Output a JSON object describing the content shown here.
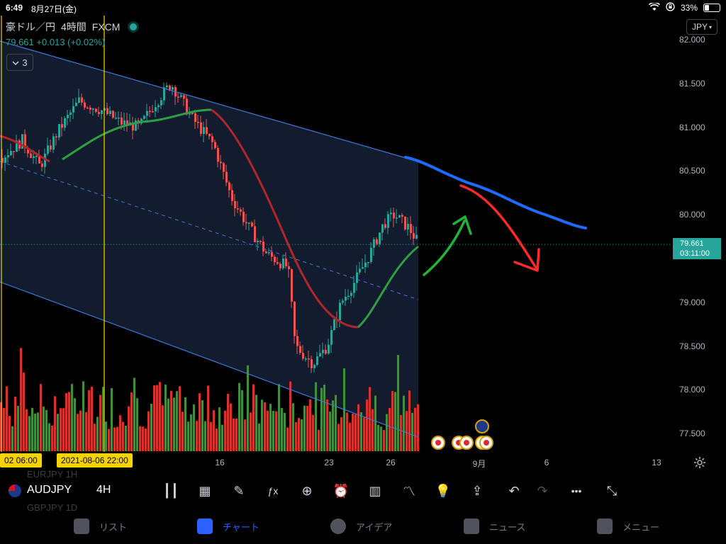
{
  "status": {
    "time": "6:49",
    "date": "8月27日(金)",
    "battery": "33%"
  },
  "legend": {
    "symbol": "豪ドル／円",
    "interval": "4時間",
    "source": "FXCM",
    "price": "79.661",
    "change": "+0.013 (+0.02%)",
    "collapse_count": "3"
  },
  "currency_button": "JPY",
  "y_axis": [
    {
      "v": "82.000",
      "p": 82.0
    },
    {
      "v": "81.500",
      "p": 81.5
    },
    {
      "v": "81.000",
      "p": 81.0
    },
    {
      "v": "80.500",
      "p": 80.5
    },
    {
      "v": "80.000",
      "p": 80.0
    },
    {
      "v": "79.000",
      "p": 79.0
    },
    {
      "v": "78.500",
      "p": 78.5
    },
    {
      "v": "78.000",
      "p": 78.0
    },
    {
      "v": "77.500",
      "p": 77.5
    }
  ],
  "price_tag": {
    "price": "79.661",
    "countdown": "03:11:00"
  },
  "x_axis": [
    "16",
    "23",
    "26",
    "9月",
    "6",
    "13"
  ],
  "x_badges": [
    "02  06:00",
    "2021-08-06  22:00"
  ],
  "toolbar": {
    "symbol": "AUDJPY",
    "timeframe": "4H",
    "ghost_rows": [
      "EURJPY  1H",
      "GBPJPY  1D"
    ]
  },
  "toolbar_icons": [
    "candles-icon",
    "calendar-replay-icon",
    "brush-icon",
    "fx-indicator-icon",
    "plus-circle-icon",
    "alert-clock-icon",
    "bar-chart-icon",
    "compare-icon",
    "lightbulb-icon",
    "share-icon",
    "undo-icon",
    "redo-icon",
    "more-icon",
    "fullscreen-icon"
  ],
  "tabs": [
    {
      "label": "リスト",
      "icon": "star-icon"
    },
    {
      "label": "チャート",
      "icon": "chart-icon",
      "active": true
    },
    {
      "label": "アイデア",
      "icon": "idea-icon"
    },
    {
      "label": "ニュース",
      "icon": "news-icon"
    },
    {
      "label": "メニュー",
      "icon": "menu-icon"
    }
  ],
  "colors": {
    "up": "#26a69a",
    "up_volume": "#3f8f3f",
    "down": "#ef5350",
    "down_volume": "#d9312b",
    "channel": "#3d7bd9",
    "ma_red": "#b2262b",
    "ma_green": "#2ea043",
    "accent": "#2962ff",
    "vline": "#f5d300"
  }
}
